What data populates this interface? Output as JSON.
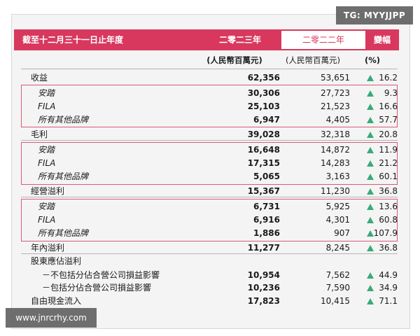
{
  "header": {
    "label": "截至十二月三十一日止年度",
    "year1": "二零二三年",
    "year2": "二零二二年",
    "change": "變幅"
  },
  "units": {
    "year1": "(人民幣百萬元)",
    "year2": "(人民幣百萬元)",
    "change": "(%)"
  },
  "rows": [
    {
      "label": "收益",
      "v1": "62,356",
      "v2": "53,651",
      "pct": "16.2"
    },
    {
      "label": "安踏",
      "v1": "30,306",
      "v2": "27,723",
      "pct": "9.3"
    },
    {
      "label": "FILA",
      "v1": "25,103",
      "v2": "21,523",
      "pct": "16.6"
    },
    {
      "label": "所有其他品牌",
      "v1": "6,947",
      "v2": "4,405",
      "pct": "57.7"
    },
    {
      "label": "毛利",
      "v1": "39,028",
      "v2": "32,318",
      "pct": "20.8"
    },
    {
      "label": "安踏",
      "v1": "16,648",
      "v2": "14,872",
      "pct": "11.9"
    },
    {
      "label": "FILA",
      "v1": "17,315",
      "v2": "14,283",
      "pct": "21.2"
    },
    {
      "label": "所有其他品牌",
      "v1": "5,065",
      "v2": "3,163",
      "pct": "60.1"
    },
    {
      "label": "經營溢利",
      "v1": "15,367",
      "v2": "11,230",
      "pct": "36.8"
    },
    {
      "label": "安踏",
      "v1": "6,731",
      "v2": "5,925",
      "pct": "13.6"
    },
    {
      "label": "FILA",
      "v1": "6,916",
      "v2": "4,301",
      "pct": "60.8"
    },
    {
      "label": "所有其他品牌",
      "v1": "1,886",
      "v2": "907",
      "pct": "107.9"
    },
    {
      "label": "年內溢利",
      "v1": "11,277",
      "v2": "8,245",
      "pct": "36.8"
    },
    {
      "label": "股東應佔溢利",
      "v1": "",
      "v2": "",
      "pct": ""
    },
    {
      "label": "－不包括分佔合營公司損益影響",
      "v1": "10,954",
      "v2": "7,562",
      "pct": "44.9"
    },
    {
      "label": "－包括分佔合營公司損益影響",
      "v1": "10,236",
      "v2": "7,590",
      "pct": "34.9"
    },
    {
      "label": "自由現金流入",
      "v1": "17,823",
      "v2": "10,415",
      "pct": "71.1"
    }
  ],
  "watermarks": {
    "top_right": "TG: MYYJJPP",
    "bottom_left": "www.jnrcrhy.com"
  },
  "colors": {
    "header_bg": "#d8385e",
    "box_border": "#d85a78",
    "up_arrow": "#3aaa7a"
  }
}
